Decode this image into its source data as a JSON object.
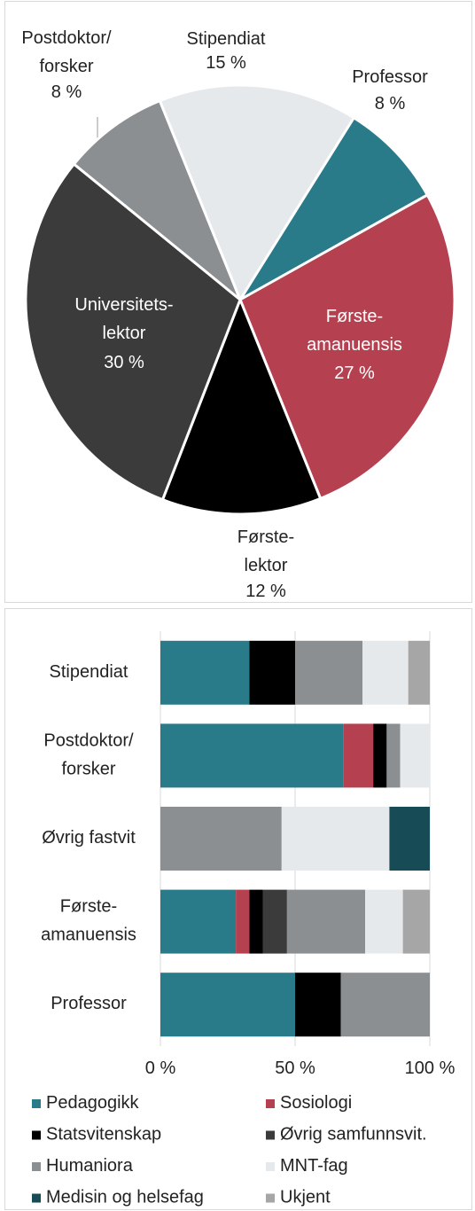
{
  "chart_data": [
    {
      "type": "pie",
      "categories": [
        "Professor",
        "Første-\namanuensis",
        "Første-\nlektor",
        "Universitets-\nlektor",
        "Postdoktor/\nforsker",
        "Stipendiat"
      ],
      "values": [
        8,
        27,
        12,
        30,
        8,
        15
      ],
      "value_labels": [
        "8 %",
        "27 %",
        "12 %",
        "30 %",
        "8 %",
        "15 %"
      ],
      "colors": [
        "#2a7b8a",
        "#b5404f",
        "#000000",
        "#3b3b3b",
        "#8b8f92",
        "#e6e9ec"
      ]
    },
    {
      "type": "bar",
      "orientation": "horizontal",
      "stacked": true,
      "categories": [
        "Stipendiat",
        "Postdoktor/\nforsker",
        "Øvrig fastvit",
        "Første-\namanuensis",
        "Professor"
      ],
      "series": [
        {
          "name": "Pedagogikk",
          "color": "#2a7b8a",
          "values": [
            33,
            68,
            0,
            28,
            50
          ]
        },
        {
          "name": "Sosiologi",
          "color": "#b5404f",
          "values": [
            0,
            11,
            0,
            5,
            0
          ]
        },
        {
          "name": "Statsvitenskap",
          "color": "#000000",
          "values": [
            17,
            5,
            0,
            5,
            17
          ]
        },
        {
          "name": "Øvrig samfunnsvit.",
          "color": "#3b3b3b",
          "values": [
            0,
            0,
            0,
            9,
            0
          ]
        },
        {
          "name": "Humaniora",
          "color": "#8b8f92",
          "values": [
            25,
            5,
            45,
            29,
            33
          ]
        },
        {
          "name": "MNT-fag",
          "color": "#e6e9ec",
          "values": [
            17,
            11,
            40,
            14,
            0
          ]
        },
        {
          "name": "Medisin og helsefag",
          "color": "#174b55",
          "values": [
            0,
            0,
            15,
            0,
            0
          ]
        },
        {
          "name": "Ukjent",
          "color": "#a6a6a6",
          "values": [
            8,
            0,
            0,
            10,
            0
          ]
        }
      ],
      "xlim": [
        0,
        100
      ],
      "xticks": [
        {
          "value": 0,
          "label": "0 %"
        },
        {
          "value": 50,
          "label": "50 %"
        },
        {
          "value": 100,
          "label": "100 %"
        }
      ],
      "grid": true
    }
  ]
}
